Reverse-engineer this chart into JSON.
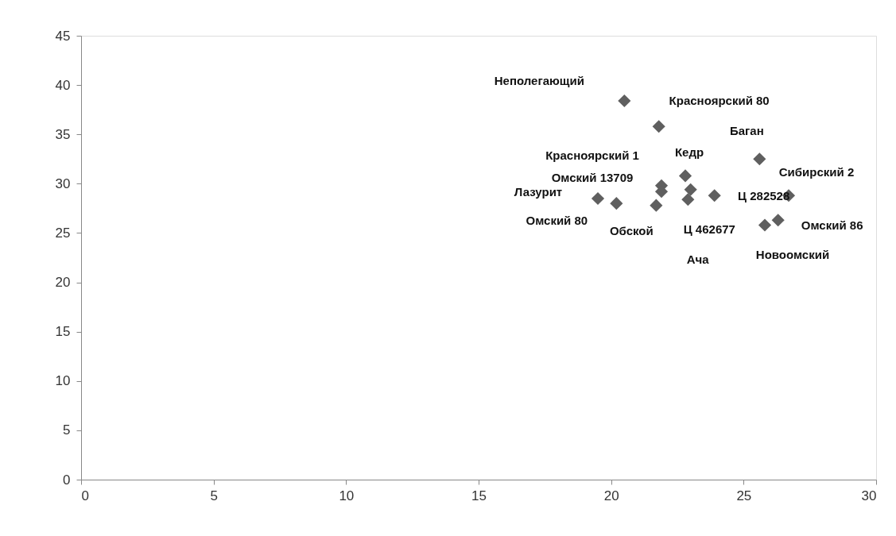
{
  "chart_data": {
    "type": "scatter",
    "marker": "diamond",
    "grid": false,
    "xlim": [
      0,
      30
    ],
    "xticks": [
      0,
      5,
      10,
      15,
      20,
      25,
      30
    ],
    "ylim": [
      0,
      45
    ],
    "yticks": [
      0,
      5,
      10,
      15,
      20,
      25,
      30,
      35,
      40,
      45
    ],
    "series": [
      {
        "color": "#5f5f5f",
        "x": [
          20.5,
          21.8,
          25.6,
          22.8,
          21.9,
          21.9,
          23.0,
          22.9,
          23.9,
          19.5,
          20.2,
          21.7,
          26.7,
          25.8,
          26.3
        ],
        "values": [
          38.4,
          35.8,
          32.5,
          30.8,
          29.8,
          29.2,
          29.4,
          28.4,
          28.8,
          28.5,
          28.0,
          27.8,
          28.8,
          25.8,
          26.3
        ]
      }
    ],
    "annotations": [
      "Неполегающий",
      "Красноярский 80",
      "Баган",
      "Кедр",
      "Красноярский 1",
      "Омский 13709",
      "Ача",
      "Ц 462677",
      "Ц 282528",
      "Лазурит",
      "Омский 80",
      "Обской",
      "Сибирский 2",
      "Новоомский",
      "Омский 86"
    ]
  }
}
